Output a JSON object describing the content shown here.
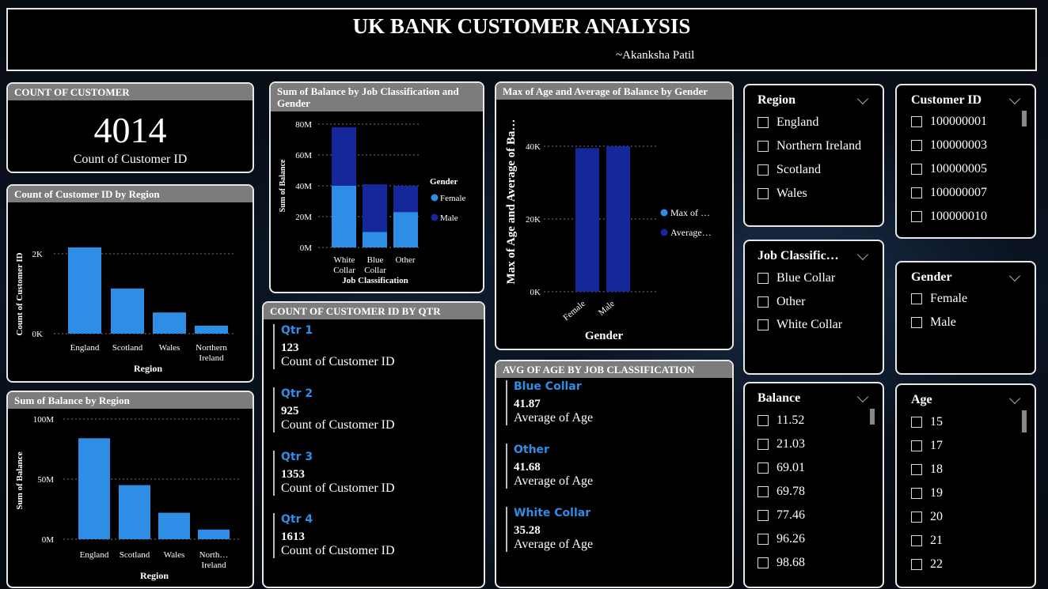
{
  "header": {
    "title": "UK BANK CUSTOMER ANALYSIS",
    "author": "~Akanksha Patil"
  },
  "count_card": {
    "title": "COUNT OF CUSTOMER",
    "value": "4014",
    "label": "Count of Customer ID"
  },
  "colors": {
    "bar_light": "#2e8ee6",
    "bar_dark": "#14279b",
    "header_grey": "#7c7c7c"
  },
  "region_count_chart": {
    "title": "Count of Customer ID by Region",
    "ylabel": "Count of Customer ID",
    "xlabel": "Region",
    "ticks": [
      "2K",
      "0K"
    ],
    "cat_1": "England",
    "cat_2": "Scotland",
    "cat_3": "Wales",
    "cat_4a": "Northern",
    "cat_4b": "Ireland"
  },
  "region_balance_chart": {
    "title": "Sum of Balance by Region",
    "ylabel": "Sum of Balance",
    "xlabel": "Region",
    "ticks": [
      "100M",
      "50M",
      "0M"
    ],
    "cat_1": "England",
    "cat_2": "Scotland",
    "cat_3": "Wales",
    "cat_4a": "North…",
    "cat_4b": "Ireland"
  },
  "job_balance_chart": {
    "title": "Sum of Balance by Job Classification and Gender",
    "ylabel": "Sum of Balance",
    "xlabel": "Job Classification",
    "ticks": [
      "80M",
      "60M",
      "40M",
      "20M",
      "0M"
    ],
    "cat_1a": "White",
    "cat_1b": "Collar",
    "cat_2a": "Blue",
    "cat_2b": "Collar",
    "cat_3": "Other",
    "legend_title": "Gender",
    "legend_1": "Female",
    "legend_2": "Male"
  },
  "age_gender_chart": {
    "title": "Max of Age and Average of Balance by Gender",
    "ylabel": "Max of Age and Average of Ba…",
    "xlabel": "Gender",
    "ticks": [
      "40K",
      "20K",
      "0K"
    ],
    "cat_1": "Female",
    "cat_2": "Male",
    "legend_1": "Max of …",
    "legend_2": "Average…"
  },
  "qtr_card": {
    "title": "COUNT OF CUSTOMER ID BY QTR",
    "items": [
      {
        "label": "Qtr 1",
        "value": "123",
        "sub": "Count of Customer ID"
      },
      {
        "label": "Qtr 2",
        "value": "925",
        "sub": "Count of Customer ID"
      },
      {
        "label": "Qtr 3",
        "value": "1353",
        "sub": "Count of Customer ID"
      },
      {
        "label": "Qtr 4",
        "value": "1613",
        "sub": "Count of Customer ID"
      }
    ]
  },
  "age_job_card": {
    "title": "AVG OF AGE BY JOB CLASSIFICATION",
    "items": [
      {
        "label": "Blue Collar",
        "value": "41.87",
        "sub": "Average of Age"
      },
      {
        "label": "Other",
        "value": "41.68",
        "sub": "Average of Age"
      },
      {
        "label": "White Collar",
        "value": "35.28",
        "sub": "Average of Age"
      }
    ]
  },
  "slicers": {
    "region": {
      "title": "Region",
      "options": [
        "England",
        "Northern Ireland",
        "Scotland",
        "Wales"
      ]
    },
    "customer_id": {
      "title": "Customer ID",
      "options": [
        "100000001",
        "100000003",
        "100000005",
        "100000007",
        "100000010"
      ]
    },
    "job": {
      "title": "Job Classific…",
      "options": [
        "Blue Collar",
        "Other",
        "White Collar"
      ]
    },
    "gender": {
      "title": "Gender",
      "options": [
        "Female",
        "Male"
      ]
    },
    "balance": {
      "title": "Balance",
      "options": [
        "11.52",
        "21.03",
        "69.01",
        "69.78",
        "77.46",
        "96.26",
        "98.68"
      ]
    },
    "age": {
      "title": "Age",
      "options": [
        "15",
        "17",
        "18",
        "19",
        "20",
        "21",
        "22"
      ]
    }
  },
  "chart_data": [
    {
      "type": "bar",
      "title": "Count of Customer ID by Region",
      "categories": [
        "England",
        "Scotland",
        "Wales",
        "Northern Ireland"
      ],
      "values": [
        2160,
        1130,
        530,
        200
      ],
      "xlabel": "Region",
      "ylabel": "Count of Customer ID",
      "ylim": [
        0,
        3000
      ]
    },
    {
      "type": "bar",
      "title": "Sum of Balance by Region",
      "categories": [
        "England",
        "Scotland",
        "Wales",
        "Northern Ireland"
      ],
      "values": [
        84,
        45,
        22,
        8
      ],
      "xlabel": "Region",
      "ylabel": "Sum of Balance",
      "ylim": [
        0,
        100
      ]
    },
    {
      "type": "bar",
      "title": "Sum of Balance by Job Classification and Gender",
      "categories": [
        "White Collar",
        "Blue Collar",
        "Other"
      ],
      "series": [
        {
          "name": "Female",
          "values": [
            40,
            10,
            23
          ]
        },
        {
          "name": "Male",
          "values": [
            38,
            31,
            17
          ]
        }
      ],
      "xlabel": "Job Classification",
      "ylabel": "Sum of Balance",
      "ylim": [
        0,
        80
      ]
    },
    {
      "type": "bar",
      "title": "Max of Age and Average of Balance by Gender",
      "categories": [
        "Female",
        "Male"
      ],
      "series": [
        {
          "name": "Max of …",
          "values": [
            0,
            0
          ]
        },
        {
          "name": "Average…",
          "values": [
            39500,
            40000
          ]
        }
      ],
      "xlabel": "Gender",
      "ylim": [
        0,
        45000
      ]
    }
  ]
}
